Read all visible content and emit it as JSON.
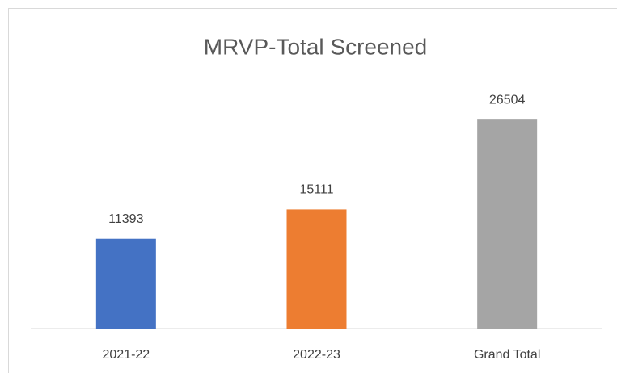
{
  "chart_data": {
    "type": "bar",
    "title": "MRVP-Total Screened",
    "categories": [
      "2021-22",
      "2022-23",
      "Grand Total"
    ],
    "values": [
      11393,
      15111,
      26504
    ],
    "colors": [
      "#4472c4",
      "#ed7d31",
      "#a5a5a5"
    ],
    "ylim": [
      0,
      30000
    ]
  }
}
